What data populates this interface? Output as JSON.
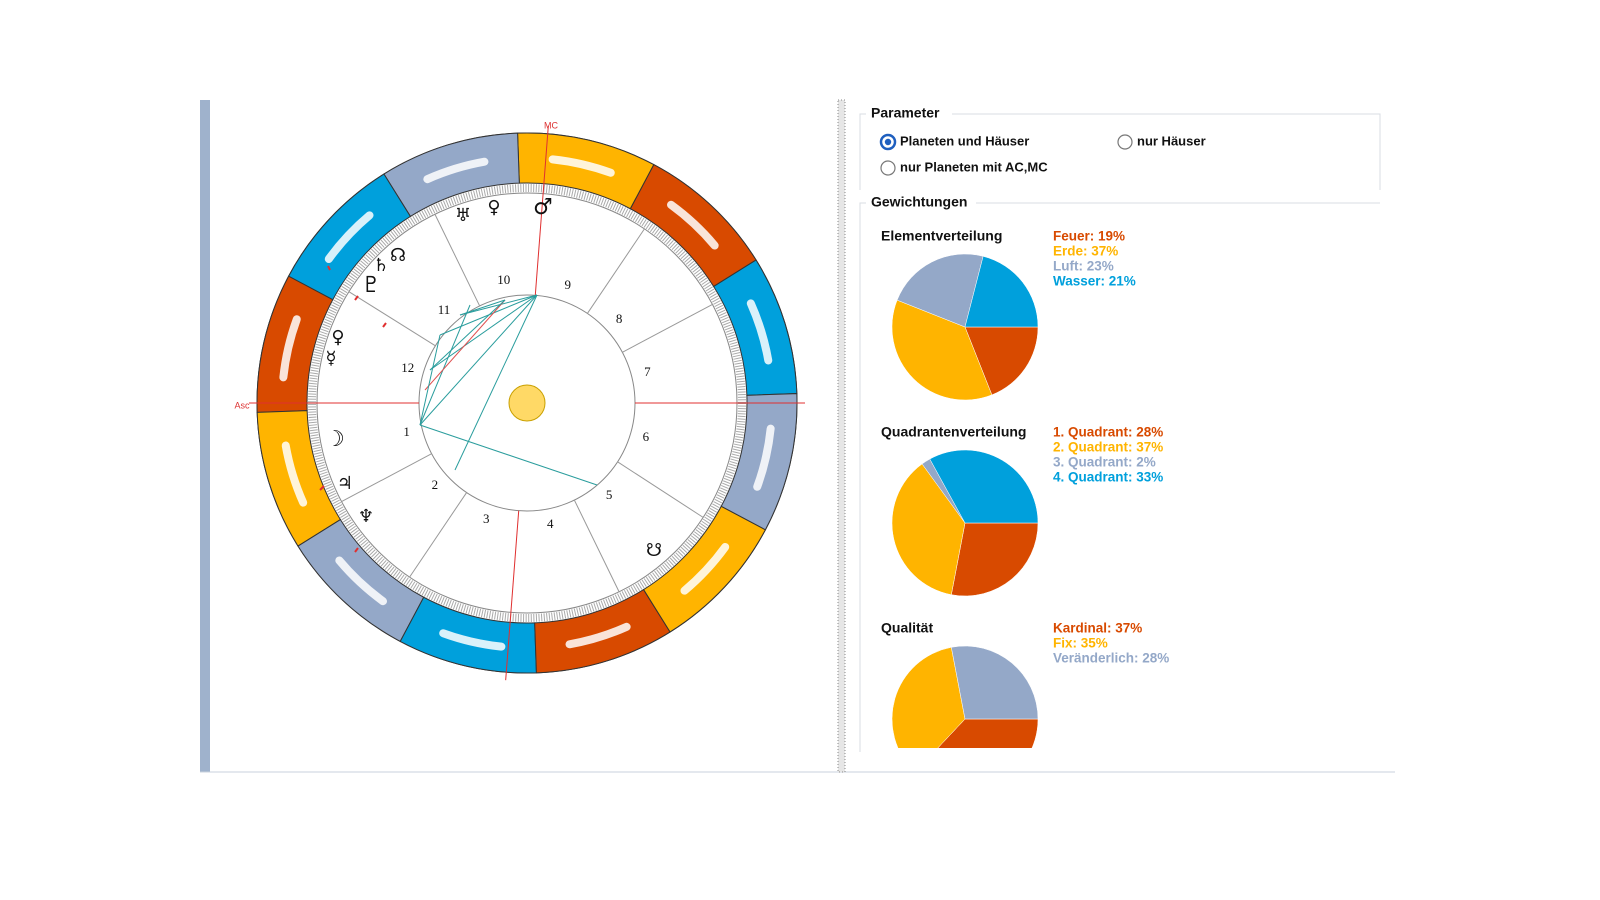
{
  "wheel": {
    "mc": "MC",
    "asc": "Asc",
    "houses": [
      "1",
      "2",
      "3",
      "4",
      "5",
      "6",
      "7",
      "8",
      "9",
      "10",
      "11",
      "12"
    ],
    "planets": [
      "♅",
      "♀",
      "♂",
      "☊",
      "♄",
      "♇",
      "♀",
      "☿",
      "☽",
      "♃",
      "♆",
      "☋"
    ]
  },
  "parameter": {
    "title": "Parameter",
    "options": [
      {
        "label": "Planeten und Häuser",
        "selected": true
      },
      {
        "label": "nur Häuser",
        "selected": false
      },
      {
        "label": "nur Planeten mit AC,MC",
        "selected": false
      }
    ]
  },
  "weighting": {
    "title": "Gewichtungen",
    "charts": [
      {
        "title": "Elementverteilung",
        "items": [
          {
            "label": "Feuer: 19%",
            "value": 19,
            "color": "#d84a00"
          },
          {
            "label": "Erde: 37%",
            "value": 37,
            "color": "#ffb400"
          },
          {
            "label": "Luft: 23%",
            "value": 23,
            "color": "#94a8c8"
          },
          {
            "label": "Wasser: 21%",
            "value": 21,
            "color": "#00a0dc"
          }
        ]
      },
      {
        "title": "Quadrantenverteilung",
        "items": [
          {
            "label": "1. Quadrant: 28%",
            "value": 28,
            "color": "#d84a00"
          },
          {
            "label": "2. Quadrant: 37%",
            "value": 37,
            "color": "#ffb400"
          },
          {
            "label": "3. Quadrant: 2%",
            "value": 2,
            "color": "#94a8c8"
          },
          {
            "label": "4. Quadrant: 33%",
            "value": 33,
            "color": "#00a0dc"
          }
        ]
      },
      {
        "title": "Qualität",
        "items": [
          {
            "label": "Kardinal: 37%",
            "value": 37,
            "color": "#d84a00"
          },
          {
            "label": "Fix: 35%",
            "value": 35,
            "color": "#ffb400"
          },
          {
            "label": "Veränderlich: 28%",
            "value": 28,
            "color": "#94a8c8"
          }
        ]
      }
    ]
  }
}
